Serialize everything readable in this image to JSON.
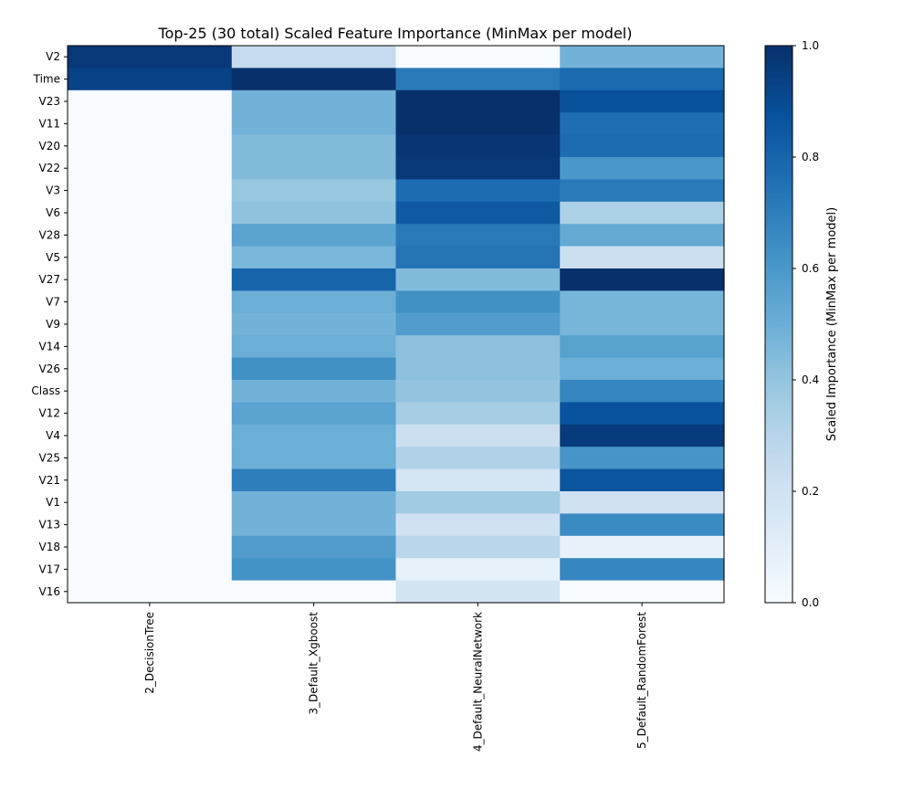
{
  "chart_data": {
    "type": "heatmap",
    "title": "Top-25 (30 total) Scaled Feature Importance (MinMax per model)",
    "columns": [
      "2_DecisionTree",
      "3_Default_Xgboost",
      "4_Default_NeuralNetwork",
      "5_Default_RandomForest"
    ],
    "rows": [
      "V2",
      "Time",
      "V23",
      "V11",
      "V20",
      "V22",
      "V3",
      "V6",
      "V28",
      "V5",
      "V27",
      "V7",
      "V9",
      "V14",
      "V26",
      "Class",
      "V12",
      "V4",
      "V25",
      "V21",
      "V1",
      "V13",
      "V18",
      "V17",
      "V16"
    ],
    "values": [
      [
        0.97,
        0.25,
        0.0,
        0.48
      ],
      [
        0.93,
        1.0,
        0.72,
        0.78
      ],
      [
        0.0,
        0.48,
        1.0,
        0.88
      ],
      [
        0.0,
        0.48,
        1.0,
        0.76
      ],
      [
        0.0,
        0.44,
        0.98,
        0.77
      ],
      [
        0.0,
        0.44,
        0.97,
        0.6
      ],
      [
        0.0,
        0.39,
        0.77,
        0.72
      ],
      [
        0.0,
        0.41,
        0.84,
        0.33
      ],
      [
        0.0,
        0.55,
        0.72,
        0.52
      ],
      [
        0.0,
        0.46,
        0.74,
        0.22
      ],
      [
        0.0,
        0.8,
        0.44,
        1.0
      ],
      [
        0.0,
        0.5,
        0.63,
        0.47
      ],
      [
        0.0,
        0.48,
        0.58,
        0.47
      ],
      [
        0.0,
        0.5,
        0.42,
        0.56
      ],
      [
        0.0,
        0.63,
        0.42,
        0.5
      ],
      [
        0.0,
        0.48,
        0.4,
        0.67
      ],
      [
        0.0,
        0.55,
        0.35,
        0.87
      ],
      [
        0.0,
        0.5,
        0.22,
        0.96
      ],
      [
        0.0,
        0.5,
        0.32,
        0.61
      ],
      [
        0.0,
        0.7,
        0.17,
        0.86
      ],
      [
        0.0,
        0.48,
        0.37,
        0.2
      ],
      [
        0.0,
        0.48,
        0.2,
        0.65
      ],
      [
        0.0,
        0.58,
        0.29,
        0.07
      ],
      [
        0.0,
        0.62,
        0.08,
        0.67
      ],
      [
        0.0,
        0.0,
        0.18,
        0.0
      ]
    ],
    "colormap": "Blues",
    "vmin": 0,
    "vmax": 1,
    "colorbar": {
      "label": "Scaled Importance (MinMax per model)",
      "ticks": [
        "0.0",
        "0.2",
        "0.4",
        "0.6",
        "0.8",
        "1.0"
      ]
    }
  }
}
